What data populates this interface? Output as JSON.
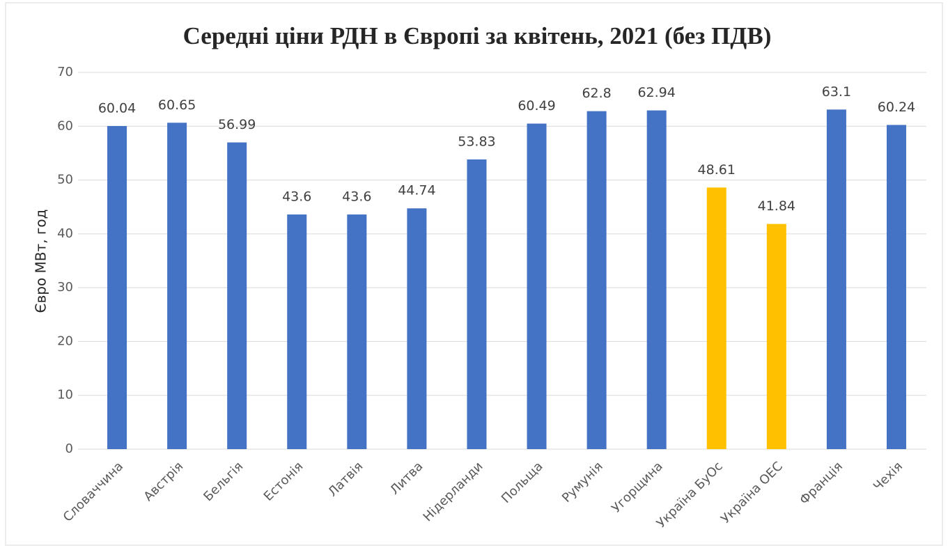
{
  "chart_data": {
    "type": "bar",
    "title": "Середні ціни РДН в Європі за квітень, 2021  (без ПДВ)",
    "y_label": "Євро МВт, год",
    "categories": [
      "Словаччина",
      "Австрія",
      "Бельгія",
      "Естонія",
      "Латвія",
      "Литва",
      "Нідерланди",
      "Польща",
      "Румунія",
      "Угорщина",
      "Україна БуОс",
      "Україна ОЕС",
      "Франція",
      "Чехія"
    ],
    "values": [
      60.04,
      60.65,
      56.99,
      43.6,
      43.6,
      44.74,
      53.83,
      60.49,
      62.8,
      62.94,
      48.61,
      41.84,
      63.1,
      60.24
    ],
    "colors": [
      "#4472c4",
      "#4472c4",
      "#4472c4",
      "#4472c4",
      "#4472c4",
      "#4472c4",
      "#4472c4",
      "#4472c4",
      "#4472c4",
      "#4472c4",
      "#ffc000",
      "#ffc000",
      "#4472c4",
      "#4472c4"
    ],
    "ylim": [
      0,
      70
    ],
    "yticks": [
      0,
      10,
      20,
      30,
      40,
      50,
      60,
      70
    ],
    "grid": true
  }
}
